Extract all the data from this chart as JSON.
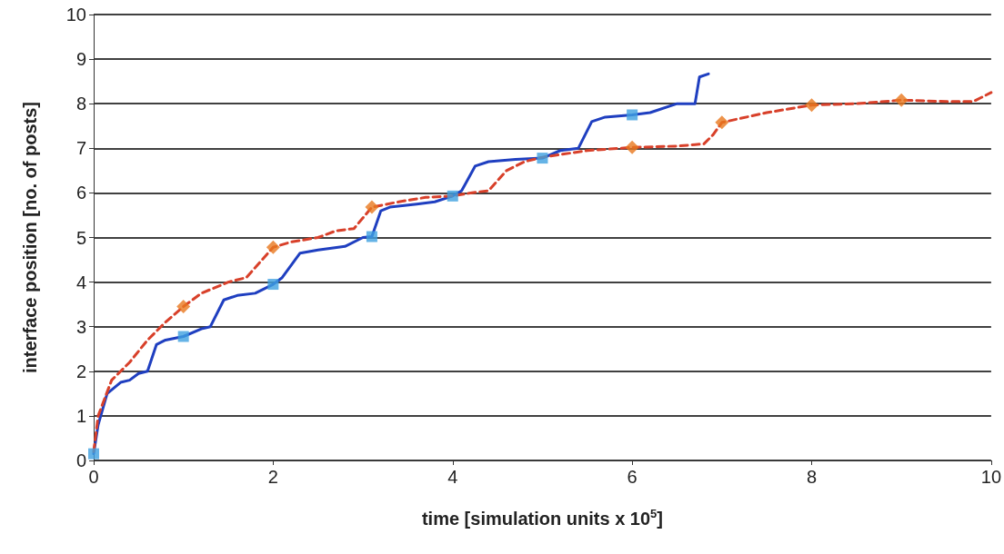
{
  "chart_data": {
    "type": "line",
    "xlabel": "time [simulation units x 10$^{5}$]",
    "ylabel": "interface position [no. of posts]",
    "xlim": [
      0,
      10
    ],
    "xticks": [
      0,
      2,
      4,
      6,
      8,
      10
    ],
    "ylim": [
      0,
      10
    ],
    "yticks": [
      0,
      1,
      2,
      3,
      4,
      5,
      6,
      7,
      8,
      9,
      10
    ],
    "grid": "y",
    "series": [
      {
        "color": "#1f3fc0",
        "line_style": "solid",
        "marker": "none",
        "x": [
          0,
          0.05,
          0.15,
          0.3,
          0.4,
          0.5,
          0.6,
          0.7,
          0.8,
          1.0,
          1.2,
          1.3,
          1.45,
          1.6,
          1.8,
          2.0,
          2.1,
          2.3,
          2.5,
          2.8,
          3.0,
          3.1,
          3.2,
          3.3,
          3.6,
          3.8,
          4.0,
          4.1,
          4.25,
          4.4,
          4.7,
          5.0,
          5.2,
          5.4,
          5.55,
          5.7,
          6.0,
          6.2,
          6.5,
          6.7,
          6.75,
          6.85
        ],
        "values": [
          0.15,
          0.8,
          1.5,
          1.75,
          1.8,
          1.95,
          2.0,
          2.6,
          2.7,
          2.78,
          2.95,
          3.0,
          3.6,
          3.7,
          3.75,
          3.95,
          4.1,
          4.65,
          4.72,
          4.8,
          5.0,
          5.02,
          5.6,
          5.68,
          5.75,
          5.8,
          5.93,
          6.05,
          6.6,
          6.7,
          6.75,
          6.78,
          6.95,
          7.0,
          7.6,
          7.7,
          7.75,
          7.8,
          8.0,
          8.0,
          8.6,
          8.67
        ]
      },
      {
        "color": "#d8402a",
        "line_style": "dashed",
        "marker": "none",
        "x": [
          0,
          0.05,
          0.2,
          0.4,
          0.6,
          0.8,
          1.0,
          1.2,
          1.5,
          1.7,
          2.0,
          2.2,
          2.5,
          2.7,
          2.9,
          3.1,
          3.4,
          3.7,
          4.0,
          4.2,
          4.4,
          4.6,
          4.8,
          5.0,
          5.5,
          6.0,
          6.5,
          6.8,
          6.9,
          7.0,
          7.5,
          8.0,
          8.5,
          9.0,
          9.5,
          9.8,
          10
        ],
        "values": [
          0.2,
          1.0,
          1.8,
          2.2,
          2.7,
          3.1,
          3.45,
          3.75,
          4.0,
          4.1,
          4.78,
          4.9,
          5.0,
          5.15,
          5.2,
          5.68,
          5.8,
          5.9,
          5.93,
          6.0,
          6.05,
          6.5,
          6.7,
          6.8,
          6.95,
          7.02,
          7.05,
          7.1,
          7.3,
          7.58,
          7.8,
          7.97,
          8.0,
          8.08,
          8.05,
          8.05,
          8.25
        ]
      },
      {
        "type": "scatter",
        "color": "#3fa0e0",
        "marker": "square",
        "x": [
          0,
          1,
          2,
          3.1,
          4,
          5,
          6
        ],
        "values": [
          0.15,
          2.78,
          3.95,
          5.02,
          5.93,
          6.78,
          7.75
        ]
      },
      {
        "type": "scatter",
        "color": "#e8781e",
        "marker": "diamond",
        "x": [
          1,
          2,
          3.1,
          6,
          7,
          8,
          9
        ],
        "values": [
          3.45,
          4.78,
          5.68,
          7.02,
          7.58,
          7.97,
          8.08
        ]
      }
    ]
  }
}
